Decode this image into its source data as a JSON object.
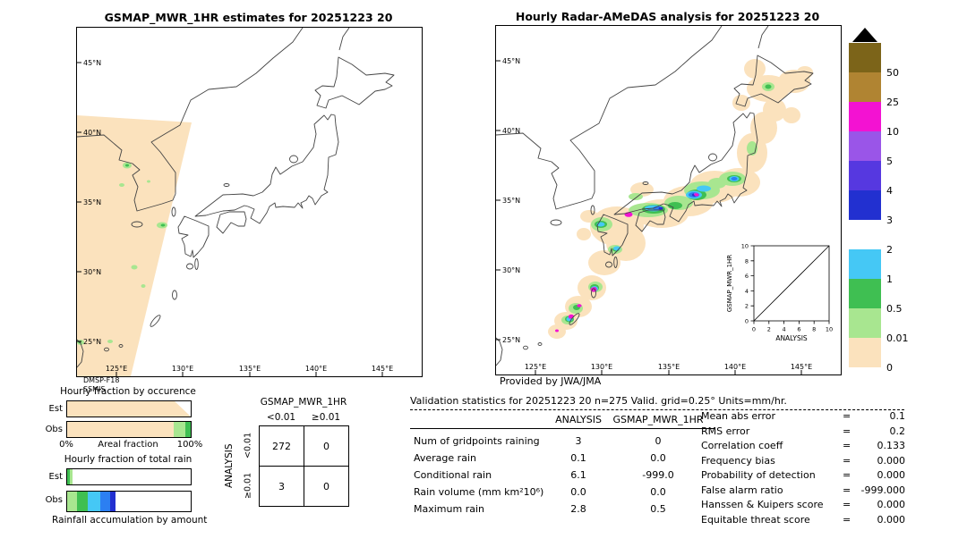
{
  "maps": {
    "lat_labels": [
      "45°N",
      "40°N",
      "35°N",
      "30°N",
      "25°N"
    ],
    "lon_labels": [
      "125°E",
      "130°E",
      "135°E",
      "140°E",
      "145°E"
    ]
  },
  "left_map": {
    "title": "GSMAP_MWR_1HR estimates for 20251223 20",
    "sensor_line1": "DMSP-F18",
    "sensor_line2": "SSMIS"
  },
  "right_map": {
    "title": "Hourly Radar-AMeDAS analysis for 20251223 20",
    "credit": "Provided by JWA/JMA",
    "inset": {
      "ylabel": "GSMAP_MWR_1HR",
      "xlabel": "ANALYSIS",
      "ticks": [
        "0",
        "2",
        "4",
        "6",
        "8",
        "10"
      ]
    }
  },
  "colorbar": {
    "levels": [
      "50",
      "25",
      "10",
      "5",
      "4",
      "3",
      "2",
      "1",
      "0.5",
      "0.01",
      "0"
    ],
    "colors": [
      "#7c6419",
      "#b08432",
      "#f312d2",
      "#9a55e8",
      "#5638e0",
      "#2230d0",
      "#2c7ff2",
      "#45c8f5",
      "#3fbf52",
      "#a8e690",
      "#fbe2bd"
    ]
  },
  "occurrence": {
    "title": "Hourly fraction by occurence",
    "est_label": "Est",
    "obs_label": "Obs",
    "axis_min": "0%",
    "axis_label": "Areal fraction",
    "axis_max": "100%",
    "est_segments": [
      {
        "color": "#fbe2bd",
        "w": 100
      }
    ],
    "est_notch_w": 13,
    "obs_segments": [
      {
        "color": "#fbe2bd",
        "w": 86
      },
      {
        "color": "#a8e690",
        "w": 10
      },
      {
        "color": "#3fbf52",
        "w": 4
      }
    ]
  },
  "total_rain": {
    "title": "Hourly fraction of total rain",
    "est_label": "Est",
    "obs_label": "Obs",
    "caption": "Rainfall accumulation by amount",
    "est_segments": [
      {
        "color": "#3fbf52",
        "w": 2
      },
      {
        "color": "#a8e690",
        "w": 2
      }
    ],
    "obs_segments": [
      {
        "color": "#a8e690",
        "w": 8
      },
      {
        "color": "#3fbf52",
        "w": 9
      },
      {
        "color": "#45c8f5",
        "w": 10
      },
      {
        "color": "#2c7ff2",
        "w": 8
      },
      {
        "color": "#2230d0",
        "w": 4
      }
    ]
  },
  "contingency": {
    "title": "GSMAP_MWR_1HR",
    "axis_label": "ANALYSIS",
    "col_headers": [
      "<0.01",
      "≥0.01"
    ],
    "row_headers": [
      "<0.01",
      "≥0.01"
    ],
    "cells": [
      [
        "272",
        "0"
      ],
      [
        "3",
        "0"
      ]
    ]
  },
  "stats": {
    "title": "Validation statistics for 20251223 20  n=275 Valid. grid=0.25° Units=mm/hr.",
    "eq": "=",
    "col_analysis": "ANALYSIS",
    "col_gsmap": "GSMAP_MWR_1HR",
    "rows": [
      {
        "label": "Num of gridpoints raining",
        "analysis": "3",
        "gsmap": "0"
      },
      {
        "label": "Average rain",
        "analysis": "0.1",
        "gsmap": "0.0"
      },
      {
        "label": "Conditional rain",
        "analysis": "6.1",
        "gsmap": "-999.0"
      },
      {
        "label": "Rain volume (mm km²10⁶)",
        "analysis": "0.0",
        "gsmap": "0.0"
      },
      {
        "label": "Maximum rain",
        "analysis": "2.8",
        "gsmap": "0.5"
      }
    ],
    "right": [
      {
        "label": "Mean abs error",
        "value": "0.1"
      },
      {
        "label": "RMS error",
        "value": "0.2"
      },
      {
        "label": "Correlation coeff",
        "value": "0.133"
      },
      {
        "label": "Frequency bias",
        "value": "0.000"
      },
      {
        "label": "Probability of detection",
        "value": "0.000"
      },
      {
        "label": "False alarm ratio",
        "value": "-999.000"
      },
      {
        "label": "Hanssen & Kuipers score",
        "value": "0.000"
      },
      {
        "label": "Equitable threat score",
        "value": "0.000"
      }
    ]
  },
  "chart_data": [
    {
      "type": "heatmap",
      "subtype": "precipitation-map",
      "title": "GSMAP_MWR_1HR estimates for 20251223 20",
      "x_ticks": [
        "125°E",
        "130°E",
        "135°E",
        "140°E",
        "145°E"
      ],
      "y_ticks": [
        "45°N",
        "40°N",
        "35°N",
        "30°N",
        "25°N"
      ],
      "units": "mm/hr",
      "sensor": "DMSP-F18 SSMIS",
      "description": "Diagonal satellite swath of 0-0.01 mm/hr coverage (beige) over Korea, the East China Sea and Taiwan, with scattered light-rain patches of 0.01-0.5 mm/hr (light green)"
    },
    {
      "type": "heatmap",
      "subtype": "precipitation-map",
      "title": "Hourly Radar-AMeDAS analysis for 20251223 20",
      "x_ticks": [
        "125°E",
        "130°E",
        "135°E",
        "140°E",
        "145°E"
      ],
      "y_ticks": [
        "45°N",
        "40°N",
        "35°N",
        "30°N",
        "25°N"
      ],
      "units": "mm/hr",
      "source": "Provided by JWA/JMA",
      "description": "Rain bands over western/central Japan and the Nansei island chain; cores above 10 mm/hr (magenta) near the Seto Inland Sea, central Honshu and the Amami-Okinawa islands",
      "inset_scatter": {
        "xlabel": "ANALYSIS",
        "ylabel": "GSMAP_MWR_1HR",
        "xlim": [
          0,
          10
        ],
        "ylim": [
          0,
          10
        ],
        "diagonal": true,
        "points": []
      }
    },
    {
      "type": "bar",
      "subtype": "stacked-fraction",
      "title": "Hourly fraction by occurence",
      "categories": [
        "Est",
        "Obs"
      ],
      "xlabel": "Areal fraction",
      "xlim_pct": [
        0,
        100
      ],
      "est": [
        {
          "class_mm_hr": "0-0.01",
          "pct": 87
        }
      ],
      "obs": [
        {
          "class_mm_hr": "0-0.01",
          "pct": 86
        },
        {
          "class_mm_hr": "0.01-0.5",
          "pct": 10
        },
        {
          "class_mm_hr": "0.5-1",
          "pct": 4
        }
      ]
    },
    {
      "type": "bar",
      "subtype": "stacked-fraction",
      "title": "Hourly fraction of total rain",
      "categories": [
        "Est",
        "Obs"
      ],
      "xlabel": "Rainfall accumulation by amount",
      "est": [
        {
          "class_mm_hr": "0.5-1",
          "pct": 2
        },
        {
          "class_mm_hr": "0.01-0.5",
          "pct": 2
        }
      ],
      "obs": [
        {
          "class_mm_hr": "0.01-0.5",
          "pct": 8
        },
        {
          "class_mm_hr": "0.5-1",
          "pct": 9
        },
        {
          "class_mm_hr": "1-2",
          "pct": 10
        },
        {
          "class_mm_hr": "2-3",
          "pct": 8
        },
        {
          "class_mm_hr": "3-4",
          "pct": 4
        }
      ]
    },
    {
      "type": "table",
      "title": "Contingency table GSMAP_MWR_1HR vs ANALYSIS",
      "col_headers": [
        "<0.01",
        "≥0.01"
      ],
      "row_headers": [
        "<0.01",
        "≥0.01"
      ],
      "matrix": [
        [
          272,
          0
        ],
        [
          3,
          0
        ]
      ]
    },
    {
      "type": "table",
      "title": "Validation statistics",
      "datetime": "20251223 20",
      "n": 275,
      "grid": "0.25°",
      "units": "mm/hr",
      "columns": [
        "ANALYSIS",
        "GSMAP_MWR_1HR"
      ],
      "rows": [
        [
          "Num of gridpoints raining",
          3,
          0
        ],
        [
          "Average rain",
          0.1,
          0.0
        ],
        [
          "Conditional rain",
          6.1,
          -999.0
        ],
        [
          "Rain volume (mm km²10⁶)",
          0.0,
          0.0
        ],
        [
          "Maximum rain",
          2.8,
          0.5
        ]
      ],
      "scores": {
        "mean_abs_error": 0.1,
        "rms_error": 0.2,
        "correlation_coeff": 0.133,
        "frequency_bias": 0.0,
        "probability_of_detection": 0.0,
        "false_alarm_ratio": -999.0,
        "hanssen_kuipers_score": 0.0,
        "equitable_threat_score": 0.0
      }
    },
    {
      "type": "heatmap",
      "subtype": "colorbar-scale",
      "levels_mm_per_hr": [
        0,
        0.01,
        0.5,
        1,
        2,
        3,
        4,
        5,
        10,
        25,
        50
      ],
      "colors_low_to_high": [
        "#fbe2bd",
        "#a8e690",
        "#3fbf52",
        "#45c8f5",
        "#2c7ff2",
        "#2230d0",
        "#5638e0",
        "#9a55e8",
        "#f312d2",
        "#b08432",
        "#7c6419"
      ]
    }
  ]
}
